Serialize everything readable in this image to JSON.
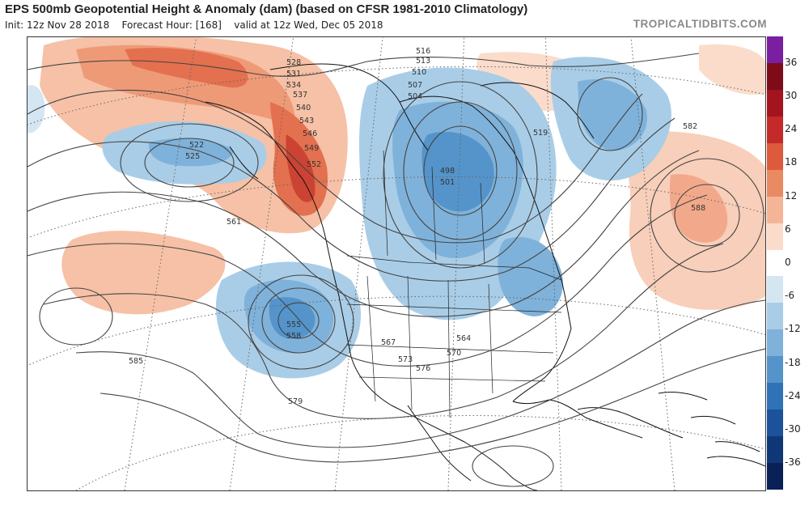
{
  "header": {
    "title": "EPS 500mb Geopotential Height & Anomaly (dam) (based on CFSR 1981-2010 Climatology)",
    "init_label": "Init: 12z Nov 28 2018",
    "forecast_label": "Forecast Hour: [168]",
    "valid_label": "valid at 12z Wed, Dec 05 2018",
    "brand": "TROPICALTIDBITS.COM"
  },
  "colorbar": {
    "ticks": [
      "36",
      "30",
      "24",
      "18",
      "12",
      "6",
      "0",
      "-6",
      "-12",
      "-18",
      "-24",
      "-30",
      "-36"
    ],
    "colors": [
      "#7a1fa2",
      "#7d0c18",
      "#a3141e",
      "#c42a2a",
      "#dd5a3c",
      "#ea8a62",
      "#f4b596",
      "#fbdccb",
      "#ffffff",
      "#d5e6f3",
      "#a9cde7",
      "#7fb2da",
      "#5494cb",
      "#2f73b6",
      "#1b529a",
      "#0f3777",
      "#0a2157"
    ]
  },
  "map": {
    "contour_labels": {
      "h482": "498",
      "h501": "501",
      "h504": "504",
      "h507": "507",
      "h510": "510",
      "h513": "513",
      "h516": "516",
      "h519": "519",
      "h522": "522",
      "h525": "525",
      "h528": "528",
      "h531": "531",
      "h534": "534",
      "h537": "537",
      "h540": "540",
      "h543": "543",
      "h546": "546",
      "h549": "549",
      "h552": "552",
      "h555": "555",
      "h558": "558",
      "h561": "561",
      "h564": "564",
      "h567": "567",
      "h570": "570",
      "h573": "573",
      "h576": "576",
      "h579": "579",
      "h582": "582",
      "h585": "585",
      "h588": "588"
    }
  }
}
